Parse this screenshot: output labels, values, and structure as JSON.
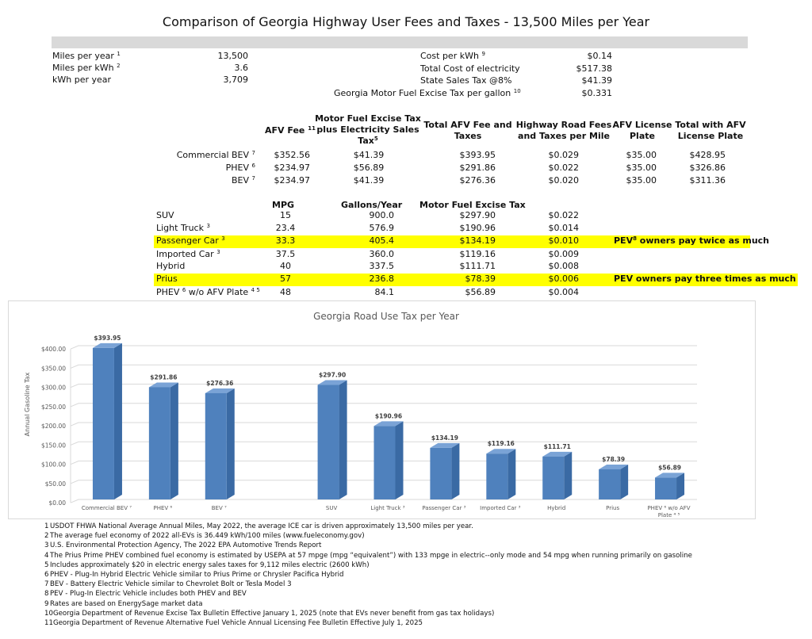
{
  "title": "Comparison of Georgia Highway User Fees and Taxes - 13,500 Miles per Year",
  "inputs_left": [
    {
      "label": "Miles per year",
      "sup": "1",
      "value": "13,500"
    },
    {
      "label": "Miles per kWh",
      "sup": "2",
      "value": "3.6"
    },
    {
      "label": "kWh per year",
      "sup": "",
      "value": "3,709"
    }
  ],
  "inputs_right": [
    {
      "label": "Cost per kWh",
      "sup": "9",
      "value": "$0.14"
    },
    {
      "label": "Total Cost of electricity",
      "sup": "",
      "value": "$517.38"
    },
    {
      "label": "State Sales Tax @8%",
      "sup": "",
      "value": "$41.39"
    },
    {
      "label": "Georgia Motor Fuel Excise Tax per gallon",
      "sup": "10",
      "value": "$0.331"
    }
  ],
  "afv_table": {
    "headers": {
      "afv_fee": "AFV Fee",
      "afv_fee_sup": "11",
      "mfet_line1": "Motor Fuel Excise Tax",
      "mfet_line2": "plus Electricity Sales",
      "mfet_line3": "Tax",
      "mfet_sup": "5",
      "total_line1": "Total AFV Fee and",
      "total_line2": "Taxes",
      "permile_line1": "Highway Road Fees",
      "permile_line2": "and Taxes per Mile",
      "plate_line1": "AFV License",
      "plate_line2": "Plate",
      "twp_line1": "Total with AFV",
      "twp_line2": "License Plate"
    },
    "rows": [
      {
        "label": "Commercial BEV",
        "sup": "7",
        "afv_fee": "$352.56",
        "mfet": "$41.39",
        "total": "$393.95",
        "per_mile": "$0.029",
        "plate": "$35.00",
        "total_plate": "$428.95"
      },
      {
        "label": "PHEV",
        "sup": "6",
        "afv_fee": "$234.97",
        "mfet": "$56.89",
        "total": "$291.86",
        "per_mile": "$0.022",
        "plate": "$35.00",
        "total_plate": "$326.86"
      },
      {
        "label": "BEV",
        "sup": "7",
        "afv_fee": "$234.97",
        "mfet": "$41.39",
        "total": "$276.36",
        "per_mile": "$0.020",
        "plate": "$35.00",
        "total_plate": "$311.36"
      }
    ]
  },
  "ice_table": {
    "headers": {
      "mpg": "MPG",
      "gallons": "Gallons/Year",
      "mfet": "Motor Fuel Excise Tax"
    },
    "rows": [
      {
        "label": "SUV",
        "sup": "",
        "mpg": "15",
        "gallons": "900.0",
        "tax": "$297.90",
        "per_mile": "$0.022",
        "note": "",
        "highlight": false
      },
      {
        "label": "Light Truck",
        "sup": "3",
        "mpg": "23.4",
        "gallons": "576.9",
        "tax": "$190.96",
        "per_mile": "$0.014",
        "note": "",
        "highlight": false
      },
      {
        "label": "Passenger Car",
        "sup": "3",
        "mpg": "33.3",
        "gallons": "405.4",
        "tax": "$134.19",
        "per_mile": "$0.010",
        "note": "PEV",
        "note_sup": "8",
        "note_rest": " owners pay twice as much",
        "highlight": true
      },
      {
        "label": "Imported Car",
        "sup": "3",
        "mpg": "37.5",
        "gallons": "360.0",
        "tax": "$119.16",
        "per_mile": "$0.009",
        "note": "",
        "highlight": false
      },
      {
        "label": "Hybrid",
        "sup": "",
        "mpg": "40",
        "gallons": "337.5",
        "tax": "$111.71",
        "per_mile": "$0.008",
        "note": "",
        "highlight": false
      },
      {
        "label": "Prius",
        "sup": "",
        "mpg": "57",
        "gallons": "236.8",
        "tax": "$78.39",
        "per_mile": "$0.006",
        "note": "PEV owners pay three times as much",
        "note_sup": "",
        "note_rest": "",
        "highlight": true
      },
      {
        "label": "PHEV",
        "sup": "6",
        "label_rest": " w/o AFV Plate",
        "sup2": "4 5",
        "mpg": "48",
        "gallons": "84.1",
        "tax": "$56.89",
        "per_mile": "$0.004",
        "note": "",
        "highlight": false
      }
    ]
  },
  "chart_data": {
    "type": "bar",
    "title": "Georgia Road Use Tax per Year",
    "ylabel": "Annual Gasoline Tax",
    "xlabel": "",
    "ylim": [
      0,
      400
    ],
    "yticks": [
      "$0.00",
      "$50.00",
      "$100.00",
      "$150.00",
      "$200.00",
      "$250.00",
      "$300.00",
      "$350.00",
      "$400.00"
    ],
    "grid": true,
    "style": "3d-column",
    "color": "#4f81bd",
    "categories": [
      "Commercial BEV",
      "PHEV",
      "BEV",
      "",
      "SUV",
      "Light Truck",
      "Passenger Car",
      "Imported Car",
      "Hybrid",
      "Prius",
      "PHEV w/o AFV Plate"
    ],
    "category_sups": [
      "7",
      "6",
      "7",
      "",
      "",
      "3",
      "3",
      "3",
      "",
      "",
      ""
    ],
    "values": [
      393.95,
      291.86,
      276.36,
      null,
      297.9,
      190.96,
      134.19,
      119.16,
      111.71,
      78.39,
      56.89
    ],
    "labels": [
      "$393.95",
      "$291.86",
      "$276.36",
      "",
      "$297.90",
      "$190.96",
      "$134.19",
      "$119.16",
      "$111.71",
      "$78.39",
      "$56.89"
    ]
  },
  "footnotes": [
    {
      "n": "1",
      "text": "USDOT FHWA National Average Annual Miles, May 2022, the average ICE car is driven approximately 13,500 miles per year."
    },
    {
      "n": "2",
      "text": "The average fuel economy of 2022 all-EVs is 36.449 kWh/100 miles (www.fueleconomy.gov)"
    },
    {
      "n": "3",
      "text": "U.S. Environmental Protection Agency, The 2022 EPA Automotive Trends Report"
    },
    {
      "n": "4",
      "text": "The Prius Prime PHEV combined fuel economy is estimated by USEPA at 57 mpge (mpg “equivalent”) with 133 mpge in electric-‐only mode and 54 mpg when running primarily on gasoline"
    },
    {
      "n": "5",
      "text": "Includes approximately $20 in electric energy sales taxes for 9,112 miles electric (2600 kWh)"
    },
    {
      "n": "6",
      "text": "PHEV - Plug-In Hybrid Electric Vehicle similar to Prius Prime or Chrysler Pacifica Hybrid"
    },
    {
      "n": "7",
      "text": "BEV - Battery Electric Vehicle similar to Chevrolet Bolt or Tesla Model 3"
    },
    {
      "n": "8",
      "text": "PEV - Plug-In Electric Vehicle includes both PHEV and BEV"
    },
    {
      "n": "9",
      "text": "Rates are based on EnergySage market data"
    },
    {
      "n": "10",
      "text": "Georgia Department of Revenue Excise Tax Bulletin Effective January 1, 2025 (note that EVs never benefit from gas tax holidays)"
    },
    {
      "n": "11",
      "text": "Georgia Department of Revenue Alternative Fuel Vehicle Annual Licensing Fee Bulletin Effective July 1, 2025"
    }
  ]
}
